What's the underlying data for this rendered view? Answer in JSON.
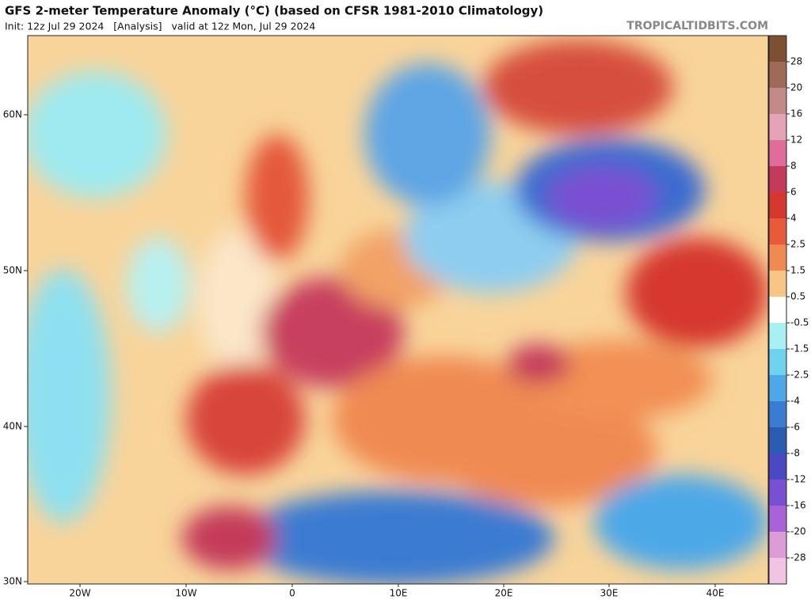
{
  "header": {
    "title": "GFS 2-meter Temperature Anomaly (°C) (based on CFSR 1981-2010 Climatology)",
    "init": "Init: 12z Jul 29 2024   [Analysis]   valid at 12z Mon, Jul 29 2024",
    "site": "TROPICALTIDBITS.COM"
  },
  "map": {
    "lat_labels": [
      "60N",
      "50N",
      "40N",
      "30N"
    ],
    "lon_labels": [
      "20W",
      "10W",
      "0",
      "10E",
      "20E",
      "30E",
      "40E"
    ]
  },
  "colorbar": {
    "labels": [
      "28",
      "20",
      "16",
      "12",
      "8",
      "6",
      "4",
      "2.5",
      "1.5",
      "0.5",
      "-0.5",
      "-1.5",
      "-2.5",
      "-4",
      "-6",
      "-8",
      "-12",
      "-16",
      "-20",
      "-28"
    ],
    "colors": [
      "#7d5034",
      "#a06a58",
      "#c48a8a",
      "#e6a2b6",
      "#e06c9c",
      "#c43a5a",
      "#d6382e",
      "#e85a3a",
      "#f08a52",
      "#f8c684",
      "#ffffff",
      "#a8f0f2",
      "#6ed2f0",
      "#4ea8e8",
      "#3a7cd2",
      "#2a5cb2",
      "#4a48c2",
      "#7a50d2",
      "#aa62d8",
      "#dc9cd8",
      "#f2c4e4"
    ]
  }
}
